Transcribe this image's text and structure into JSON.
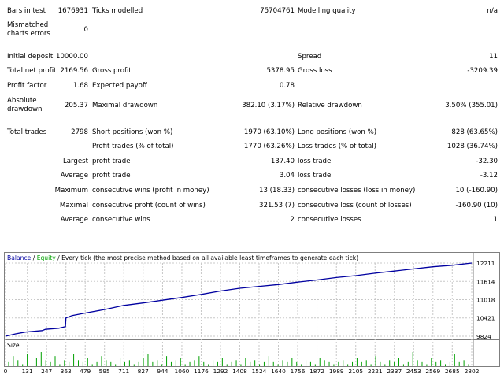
{
  "report": {
    "bars_label": "Bars in test",
    "bars_value": "1676931",
    "ticks_label": "Ticks modelled",
    "ticks_value": "75704761",
    "quality_label": "Modelling quality",
    "quality_value": "n/a",
    "mismatched_label_1": "Mismatched",
    "mismatched_label_2": "charts errors",
    "mismatched_value": "0",
    "deposit_label": "Initial deposit",
    "deposit_value": "10000.00",
    "spread_label": "Spread",
    "spread_value": "11",
    "net_label": "Total net profit",
    "net_value": "2169.56",
    "gross_profit_label": "Gross profit",
    "gross_profit_value": "5378.95",
    "gross_loss_label": "Gross loss",
    "gross_loss_value": "-3209.39",
    "pf_label": "Profit factor",
    "pf_value": "1.68",
    "payoff_label": "Expected payoff",
    "payoff_value": "0.78",
    "abs_dd_label_1": "Absolute",
    "abs_dd_label_2": "drawdown",
    "abs_dd_value": "205.37",
    "max_dd_label": "Maximal drawdown",
    "max_dd_value": "382.10 (3.17%)",
    "rel_dd_label": "Relative drawdown",
    "rel_dd_value": "3.50% (355.01)",
    "trades_label": "Total trades",
    "trades_value": "2798",
    "short_label": "Short positions (won %)",
    "short_value": "1970 (63.10%)",
    "long_label": "Long positions (won %)",
    "long_value": "828 (63.65%)",
    "ptrades_label": "Profit trades (% of total)",
    "ptrades_value": "1770 (63.26%)",
    "ltrades_label": "Loss trades (% of total)",
    "ltrades_value": "1028 (36.74%)",
    "largest_label": "Largest",
    "largest_profit_label": "profit trade",
    "largest_profit_value": "137.40",
    "largest_loss_label": "loss trade",
    "largest_loss_value": "-32.30",
    "average_label": "Average",
    "average_profit_label": "profit trade",
    "average_profit_value": "3.04",
    "average_loss_label": "loss trade",
    "average_loss_value": "-3.12",
    "maximum_label": "Maximum",
    "max_wins_label": "consecutive wins (profit in money)",
    "max_wins_value": "13 (18.33)",
    "max_losses_label": "consecutive losses (loss in money)",
    "max_losses_value": "10 (-160.90)",
    "maximal_label": "Maximal",
    "maxl_profit_label": "consecutive profit (count of wins)",
    "maxl_profit_value": "321.53 (7)",
    "maxl_loss_label": "consecutive loss (count of losses)",
    "maxl_loss_value": "-160.90 (10)",
    "avg2_label": "Average",
    "avg_wins_label": "consecutive wins",
    "avg_wins_value": "2",
    "avg_losses_label": "consecutive losses",
    "avg_losses_value": "1"
  },
  "chart_header": {
    "balance": "Balance",
    "sep": " / ",
    "equity": "Equity",
    "rest": " / Every tick (the most precise method based on all available least timeframes to generate each tick)"
  },
  "colors": {
    "balance": "#0000a0",
    "equity": "#00a000",
    "size": "#00a000",
    "grid": "#c8c8c8"
  },
  "chart_data": {
    "type": "line",
    "series": [
      {
        "name": "Balance",
        "points": [
          [
            0,
            9824
          ],
          [
            60,
            9900
          ],
          [
            120,
            9960
          ],
          [
            220,
            10010
          ],
          [
            240,
            10050
          ],
          [
            320,
            10085
          ],
          [
            360,
            10140
          ],
          [
            363,
            10420
          ],
          [
            400,
            10500
          ],
          [
            480,
            10580
          ],
          [
            600,
            10700
          ],
          [
            711,
            10830
          ],
          [
            827,
            10910
          ],
          [
            944,
            11000
          ],
          [
            1060,
            11090
          ],
          [
            1176,
            11190
          ],
          [
            1292,
            11300
          ],
          [
            1408,
            11390
          ],
          [
            1524,
            11450
          ],
          [
            1640,
            11510
          ],
          [
            1756,
            11590
          ],
          [
            1872,
            11660
          ],
          [
            1989,
            11740
          ],
          [
            2105,
            11800
          ],
          [
            2221,
            11880
          ],
          [
            2337,
            11950
          ],
          [
            2453,
            12020
          ],
          [
            2569,
            12090
          ],
          [
            2685,
            12140
          ],
          [
            2802,
            12210
          ]
        ]
      },
      {
        "name": "Equity",
        "points": []
      }
    ],
    "x_ticks": [
      "0",
      "131",
      "247",
      "363",
      "479",
      "595",
      "711",
      "827",
      "944",
      "1060",
      "1176",
      "1292",
      "1408",
      "1524",
      "1640",
      "1756",
      "1872",
      "1989",
      "2105",
      "2221",
      "2337",
      "2453",
      "2569",
      "2685",
      "2802"
    ],
    "y_ticks": [
      "12211",
      "11614",
      "11018",
      "10421",
      "9824"
    ],
    "y_range": [
      9824,
      12211
    ],
    "x_range": [
      0,
      2802
    ],
    "size_title": "Size",
    "size_bars": [
      2,
      5,
      3,
      1,
      6,
      2,
      4,
      7,
      3,
      2,
      5,
      1,
      3,
      2,
      6,
      3,
      2,
      4,
      1,
      2,
      5,
      3,
      2,
      1,
      4,
      2,
      3,
      1,
      2,
      4,
      6,
      2,
      3,
      1,
      5,
      2,
      3,
      4,
      1,
      2,
      3,
      5,
      2,
      1,
      3,
      2,
      4,
      1,
      2,
      3,
      1,
      4,
      2,
      3,
      1,
      2,
      5,
      2,
      1,
      3,
      2,
      4,
      2,
      1,
      3,
      2,
      1,
      4,
      3,
      2,
      1,
      2,
      3,
      1,
      2,
      4,
      2,
      3,
      1,
      5,
      2,
      1,
      3,
      2,
      4,
      1,
      2,
      7,
      3,
      2,
      1,
      4,
      2,
      3,
      1,
      2,
      6,
      2,
      3,
      1
    ]
  }
}
